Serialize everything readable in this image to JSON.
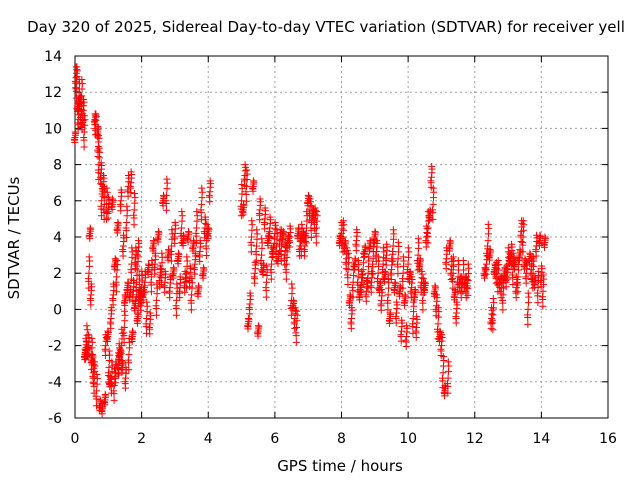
{
  "chart_data": {
    "type": "scatter",
    "title": "Day 320 of 2025, Sidereal Day-to-day VTEC variation (SDTVAR) for receiver yell",
    "xlabel": "GPS time / hours",
    "ylabel": "SDTVAR / TECUs",
    "xlim": [
      0,
      16
    ],
    "ylim": [
      -6,
      14
    ],
    "xticks": [
      "0",
      "2",
      "4",
      "6",
      "8",
      "10",
      "12",
      "14",
      "16"
    ],
    "yticks": [
      "-6",
      "-4",
      "-2",
      "0",
      "2",
      "4",
      "6",
      "8",
      "10",
      "12",
      "14"
    ],
    "grid": true,
    "marker": "+",
    "marker_color": "#ff0000",
    "series": [
      {
        "name": "SDTVAR",
        "x": [
          0.0,
          0.03,
          0.05,
          0.08,
          0.1,
          0.12,
          0.15,
          0.18,
          0.2,
          0.22,
          0.25,
          0.28,
          0.3,
          0.32,
          0.35,
          0.38,
          0.4,
          0.42,
          0.45,
          0.48,
          0.5,
          0.52,
          0.55,
          0.58,
          0.6,
          0.62,
          0.65,
          0.68,
          0.7,
          0.72,
          0.75,
          0.78,
          0.8,
          0.82,
          0.85,
          0.88,
          0.9,
          0.92,
          0.95,
          0.98,
          1.0,
          1.02,
          1.05,
          1.08,
          1.1,
          1.12,
          1.15,
          1.18,
          1.2,
          1.22,
          1.25,
          1.28,
          1.3,
          1.32,
          1.35,
          1.38,
          1.4,
          1.42,
          1.45,
          1.48,
          1.5,
          1.52,
          1.55,
          1.58,
          1.6,
          1.62,
          1.65,
          1.68,
          1.7,
          1.72,
          1.75,
          1.78,
          1.8,
          1.82,
          1.85,
          1.88,
          1.9,
          1.92,
          1.95,
          1.98,
          2.0,
          2.05,
          2.1,
          2.15,
          2.2,
          2.25,
          2.3,
          2.35,
          2.4,
          2.45,
          2.5,
          2.55,
          2.6,
          2.65,
          2.7,
          2.75,
          2.8,
          2.85,
          2.9,
          2.95,
          3.0,
          3.05,
          3.1,
          3.15,
          3.2,
          3.25,
          3.3,
          3.35,
          3.4,
          3.45,
          3.5,
          3.55,
          3.6,
          3.65,
          3.7,
          3.75,
          3.8,
          3.85,
          3.9,
          3.95,
          4.0,
          4.05,
          5.0,
          5.05,
          5.1,
          5.15,
          5.2,
          5.25,
          5.3,
          5.35,
          5.4,
          5.45,
          5.5,
          5.55,
          5.6,
          5.65,
          5.7,
          5.75,
          5.8,
          5.85,
          5.9,
          5.95,
          6.0,
          6.05,
          6.1,
          6.15,
          6.2,
          6.25,
          6.3,
          6.35,
          6.4,
          6.45,
          6.5,
          6.55,
          6.6,
          6.65,
          6.7,
          6.75,
          6.8,
          6.85,
          6.9,
          6.95,
          7.0,
          7.05,
          7.1,
          7.15,
          7.2,
          7.25,
          7.95,
          8.0,
          8.05,
          8.1,
          8.15,
          8.2,
          8.25,
          8.3,
          8.35,
          8.4,
          8.45,
          8.5,
          8.55,
          8.6,
          8.65,
          8.7,
          8.75,
          8.8,
          8.85,
          8.9,
          8.95,
          9.0,
          9.05,
          9.1,
          9.15,
          9.2,
          9.25,
          9.3,
          9.35,
          9.4,
          9.45,
          9.5,
          9.55,
          9.6,
          9.65,
          9.7,
          9.75,
          9.8,
          9.85,
          9.9,
          9.95,
          10.0,
          10.05,
          10.1,
          10.15,
          10.2,
          10.25,
          10.3,
          10.35,
          10.4,
          10.45,
          10.5,
          10.55,
          10.6,
          10.65,
          10.7,
          10.75,
          10.8,
          10.85,
          10.9,
          10.95,
          11.0,
          11.05,
          11.1,
          11.15,
          11.2,
          11.25,
          11.3,
          11.35,
          11.4,
          11.45,
          11.5,
          11.55,
          11.6,
          11.65,
          11.7,
          11.75,
          11.8,
          12.3,
          12.35,
          12.4,
          12.45,
          12.5,
          12.55,
          12.6,
          12.65,
          12.7,
          12.75,
          12.8,
          12.85,
          12.9,
          12.95,
          13.0,
          13.05,
          13.1,
          13.15,
          13.2,
          13.25,
          13.3,
          13.35,
          13.4,
          13.45,
          13.5,
          13.55,
          13.6,
          13.65,
          13.7,
          13.75,
          13.8,
          13.85,
          13.9,
          13.95,
          14.0,
          14.05,
          14.1
        ],
        "y": [
          9.5,
          12.8,
          12.5,
          11.2,
          10.5,
          11.8,
          11.5,
          10.8,
          11.8,
          10.2,
          11.0,
          9.8,
          -2.5,
          -2.2,
          -1.8,
          -2.3,
          -2.0,
          2.0,
          4.2,
          0.8,
          -2.5,
          -2.8,
          -3.5,
          -3.8,
          10.5,
          10.2,
          -4.5,
          9.8,
          9.0,
          8.0,
          -5.3,
          7.5,
          6.0,
          -5.5,
          6.8,
          5.8,
          -5.0,
          -2.0,
          5.8,
          -1.5,
          5.6,
          -3.2,
          -4.0,
          -0.5,
          -3.8,
          5.8,
          0.8,
          -4.2,
          2.5,
          -3.5,
          1.8,
          4.5,
          -3.0,
          -2.8,
          -2.5,
          6.0,
          -2.0,
          -3.2,
          3.5,
          -1.0,
          0.5,
          -3.8,
          4.8,
          1.2,
          6.8,
          -2.5,
          0.8,
          7.0,
          2.5,
          -1.5,
          1.0,
          5.5,
          0.2,
          2.8,
          1.5,
          -0.5,
          3.2,
          1.0,
          0.8,
          0.5,
          1.2,
          0.8,
          1.5,
          -0.5,
          2.2,
          -0.8,
          1.8,
          3.5,
          2.5,
          0.5,
          4.0,
          1.8,
          2.2,
          6.0,
          1.5,
          6.3,
          3.0,
          1.2,
          3.5,
          2.0,
          4.2,
          0.5,
          2.8,
          1.2,
          4.5,
          3.8,
          1.5,
          2.0,
          4.0,
          1.8,
          0.8,
          3.5,
          2.5,
          4.5,
          1.0,
          3.2,
          5.8,
          2.0,
          4.5,
          3.8,
          4.2,
          6.5,
          6.0,
          5.5,
          7.4,
          6.8,
          -0.8,
          0.3,
          4.0,
          6.8,
          2.0,
          3.5,
          -1.2,
          5.5,
          3.0,
          2.2,
          5.0,
          1.5,
          3.8,
          4.5,
          2.5,
          3.2,
          4.2,
          3.5,
          2.8,
          3.8,
          3.5,
          4.0,
          3.0,
          2.5,
          3.8,
          4.0,
          0.5,
          0.2,
          -0.5,
          -1.0,
          4.2,
          3.5,
          3.8,
          4.0,
          3.5,
          4.5,
          6.0,
          5.5,
          4.8,
          5.2,
          5.0,
          4.5,
          3.8,
          4.2,
          4.0,
          3.5,
          2.8,
          2.2,
          0.5,
          -0.5,
          1.5,
          2.5,
          3.8,
          1.8,
          0.8,
          1.5,
          2.2,
          3.2,
          1.0,
          2.0,
          3.5,
          1.5,
          2.8,
          4.0,
          3.2,
          2.0,
          1.2,
          0.5,
          2.5,
          1.8,
          3.0,
          0.8,
          -0.5,
          2.2,
          3.5,
          1.2,
          -0.2,
          2.8,
          1.0,
          -1.2,
          2.0,
          0.5,
          -1.5,
          2.5,
          1.8,
          1.2,
          -0.5,
          0.8,
          -1.0,
          3.0,
          2.5,
          1.5,
          0.8,
          1.2,
          4.0,
          4.5,
          5.2,
          7.3,
          5.8,
          1.0,
          0.2,
          -0.8,
          -1.5,
          -2.0,
          -3.5,
          -4.5,
          2.8,
          -3.8,
          3.5,
          2.2,
          2.0,
          0.8,
          -0.2,
          1.8,
          1.5,
          1.2,
          1.8,
          1.5,
          1.2,
          1.6,
          2.0,
          2.5,
          3.8,
          3.0,
          -0.5,
          -0.3,
          2.2,
          2.0,
          1.8,
          1.5,
          1.2,
          0.8,
          2.0,
          1.8,
          2.5,
          2.8,
          3.0,
          2.2,
          2.5,
          1.2,
          1.8,
          3.0,
          4.3,
          4.0,
          2.5,
          2.0,
          0.0,
          2.8,
          2.2,
          2.0,
          1.5,
          3.5,
          1.2,
          3.8,
          1.8,
          1.0,
          3.7
        ]
      }
    ]
  }
}
